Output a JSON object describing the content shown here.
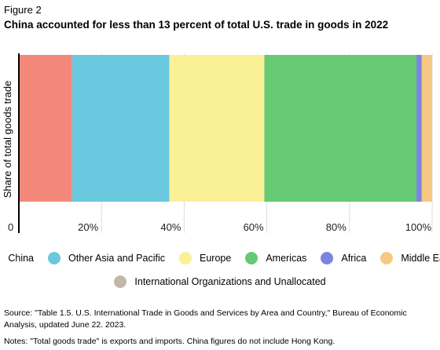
{
  "figure_label": "Figure 2",
  "title": "China accounted for less than 13 percent of total U.S. trade in goods in 2022",
  "chart_data": {
    "type": "bar",
    "orientation": "horizontal",
    "stacked": true,
    "categories": [
      "Share of total goods trade"
    ],
    "ylabel": "Share of total goods trade",
    "xlabel": "",
    "xlim": [
      0,
      100
    ],
    "xticks": [
      {
        "value": 0,
        "label": "0"
      },
      {
        "value": 20,
        "label": "20%"
      },
      {
        "value": 40,
        "label": "40%"
      },
      {
        "value": 60,
        "label": "60%"
      },
      {
        "value": 80,
        "label": "80%"
      },
      {
        "value": 100,
        "label": "100%"
      }
    ],
    "grid": true,
    "legend_position": "bottom",
    "series": [
      {
        "name": "China",
        "values": [
          12.9
        ],
        "color": "#f3887a"
      },
      {
        "name": "Other Asia and Pacific",
        "values": [
          23.5
        ],
        "color": "#6ac8de"
      },
      {
        "name": "Europe",
        "values": [
          23.0
        ],
        "color": "#faf095"
      },
      {
        "name": "Americas",
        "values": [
          36.8
        ],
        "color": "#66c974"
      },
      {
        "name": "Africa",
        "values": [
          1.3
        ],
        "color": "#7b85df"
      },
      {
        "name": "Middle East",
        "values": [
          2.5
        ],
        "color": "#f6c883"
      },
      {
        "name": "International Organizations and Unallocated",
        "values": [
          0.0
        ],
        "color": "#c2b8a6"
      }
    ]
  },
  "footnotes": {
    "source": "Source: \"Table 1.5. U.S. International Trade in Goods and Services by Area and Country,\" Bureau of Economic Analysis, updated June 22. 2023.",
    "notes": "Notes: \"Total goods trade\" is exports and imports. China figures do not include Hong Kong."
  }
}
